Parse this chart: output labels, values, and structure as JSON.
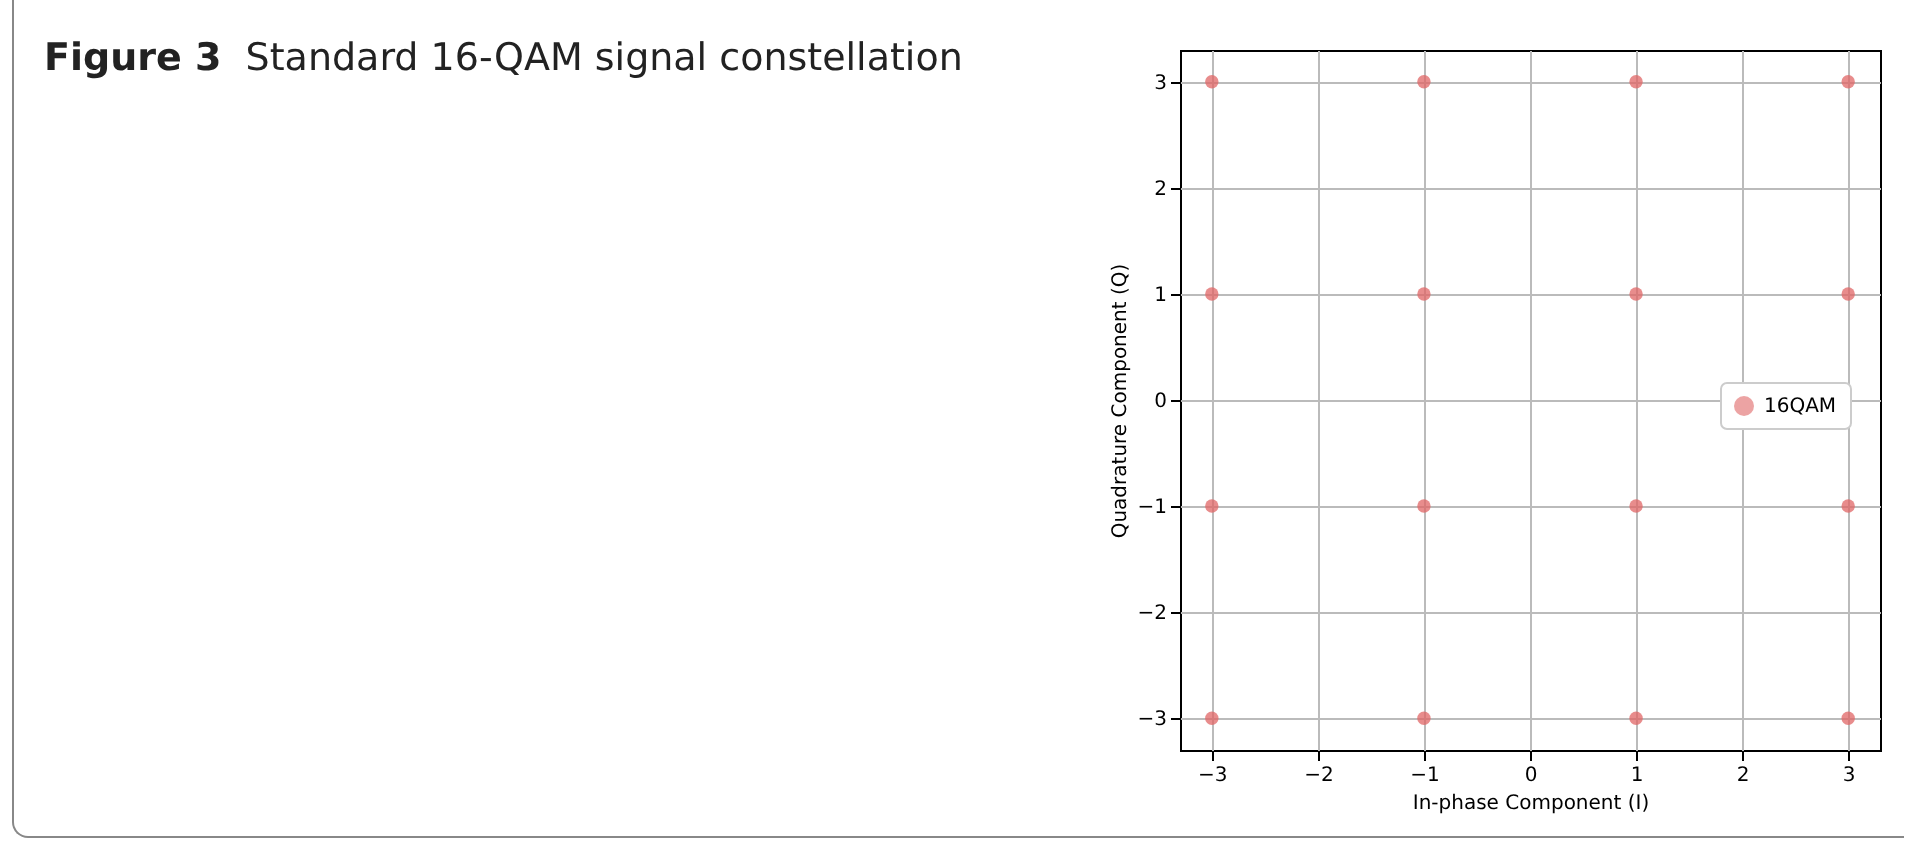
{
  "chart_data": {
    "type": "scatter",
    "title": "Figure 3  Standard 16-QAM signal constellation",
    "xlabel": "In-phase Component (I)",
    "ylabel": "Quadrature Component (Q)",
    "series": [
      {
        "name": "16QAM",
        "color": "#e06666",
        "x": [
          -3,
          -1,
          1,
          3,
          -3,
          -1,
          1,
          3,
          -3,
          -1,
          1,
          3,
          -3,
          -1,
          1,
          3
        ],
        "values": [
          3,
          3,
          3,
          3,
          1,
          1,
          1,
          1,
          -1,
          -1,
          -1,
          -1,
          -3,
          -3,
          -3,
          -3
        ]
      }
    ],
    "xlim": [
      -3.3,
      3.3
    ],
    "ylim": [
      -3.3,
      3.3
    ],
    "xticks": [
      -3,
      -2,
      -1,
      0,
      1,
      2,
      3
    ],
    "yticks": [
      -3,
      -2,
      -1,
      0,
      1,
      2,
      3
    ],
    "grid": true,
    "legend": "right",
    "marker": "circle"
  }
}
